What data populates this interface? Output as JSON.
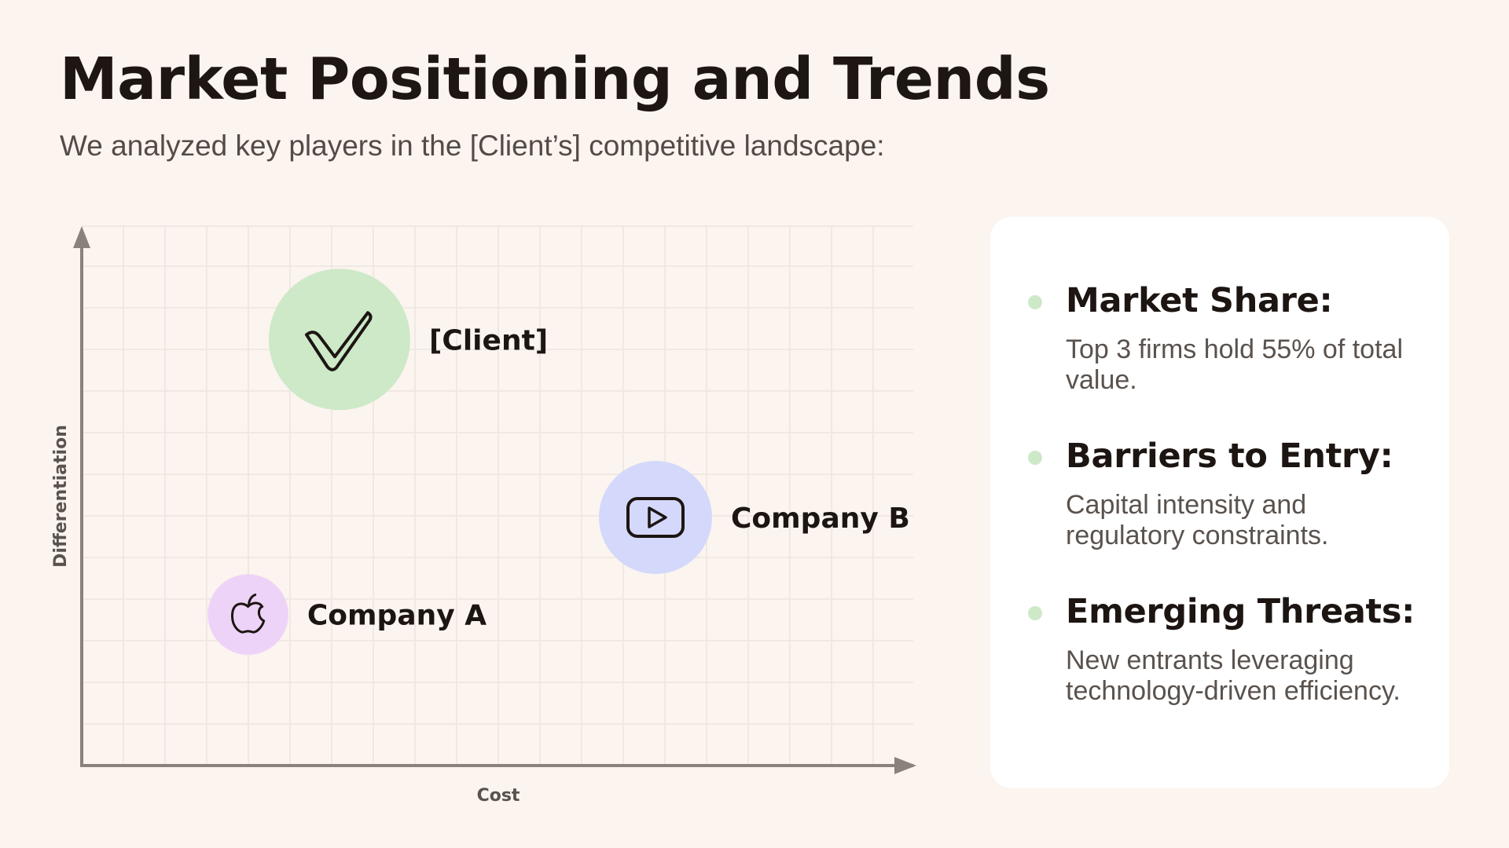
{
  "page": {
    "title": "Market Positioning and Trends",
    "subtitle": "We analyzed key players in the [Client’s] competitive landscape:"
  },
  "chart_data": {
    "type": "scatter",
    "xlabel": "Cost",
    "ylabel": "Differentiation",
    "xlim": [
      0,
      10
    ],
    "ylim": [
      0,
      10
    ],
    "grid": true,
    "points": [
      {
        "label": "[Client]",
        "x": 3.1,
        "y": 7.9,
        "size": 1.0,
        "color": "#cde9c7",
        "icon": "checkmark-icon"
      },
      {
        "label": "Company B",
        "x": 6.9,
        "y": 4.6,
        "size": 0.8,
        "color": "#d4d8fb",
        "icon": "play-button-icon"
      },
      {
        "label": "Company A",
        "x": 2.0,
        "y": 2.8,
        "size": 0.57,
        "color": "#eed3f8",
        "icon": "apple-icon"
      }
    ]
  },
  "insights": [
    {
      "heading": "Market Share:",
      "text": "Top 3 firms hold 55% of total value."
    },
    {
      "heading": "Barriers to Entry:",
      "text": "Capital intensity and regulatory constraints."
    },
    {
      "heading": "Emerging Threats:",
      "text": "New entrants leveraging technology-driven efficiency."
    }
  ],
  "colors": {
    "background": "#fbf4ef",
    "card": "#ffffff",
    "bullet": "#cde9c7",
    "axis": "#8a817c",
    "grid": "#ede5df"
  }
}
